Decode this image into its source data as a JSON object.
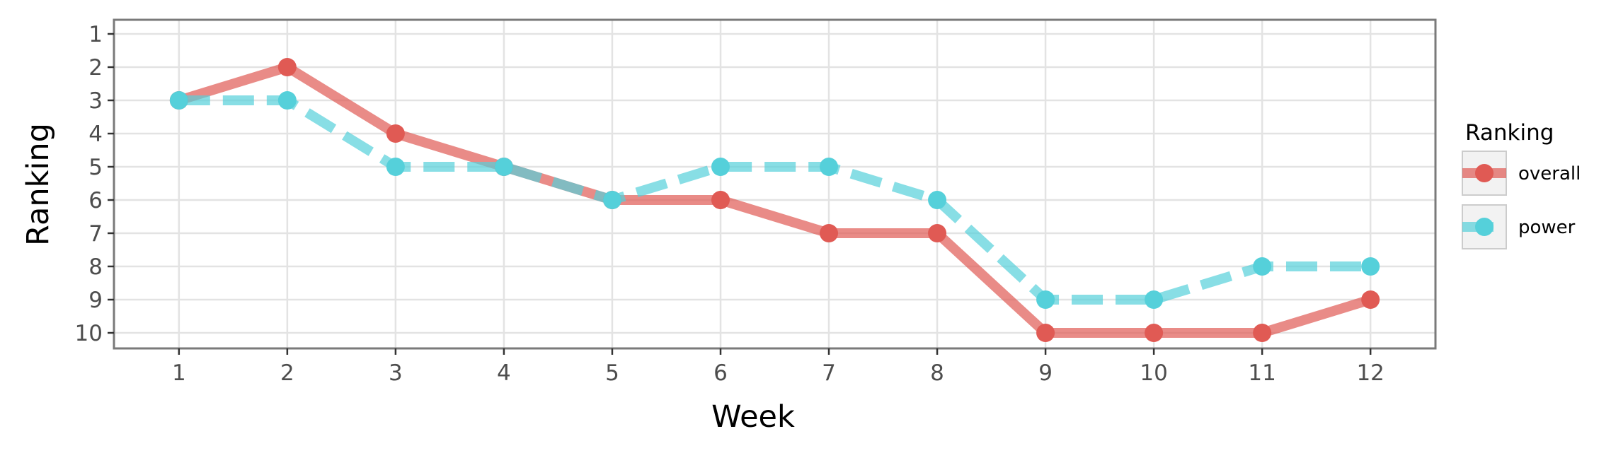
{
  "chart_data": {
    "type": "line",
    "xlabel": "Week",
    "ylabel": "Ranking",
    "x": [
      1,
      2,
      3,
      4,
      5,
      6,
      7,
      8,
      9,
      10,
      11,
      12
    ],
    "x_ticks": [
      "1",
      "2",
      "3",
      "4",
      "5",
      "6",
      "7",
      "8",
      "9",
      "10",
      "11",
      "12"
    ],
    "y_ticks": [
      "1",
      "2",
      "3",
      "4",
      "5",
      "6",
      "7",
      "8",
      "9",
      "10"
    ],
    "y_reversed": true,
    "xlim": [
      0.4,
      12.6
    ],
    "ylim": [
      1,
      10
    ],
    "grid": true,
    "legend": {
      "title": "Ranking",
      "placement": "right"
    },
    "series": [
      {
        "name": "overall",
        "color": "#e05a54",
        "line_style": "solid",
        "values": [
          3,
          2,
          4,
          5,
          6,
          6,
          7,
          7,
          10,
          10,
          10,
          9
        ]
      },
      {
        "name": "power",
        "color": "#55d0da",
        "line_style": "dashed",
        "values": [
          3,
          3,
          5,
          5,
          6,
          5,
          5,
          6,
          9,
          9,
          8,
          8
        ]
      }
    ]
  }
}
